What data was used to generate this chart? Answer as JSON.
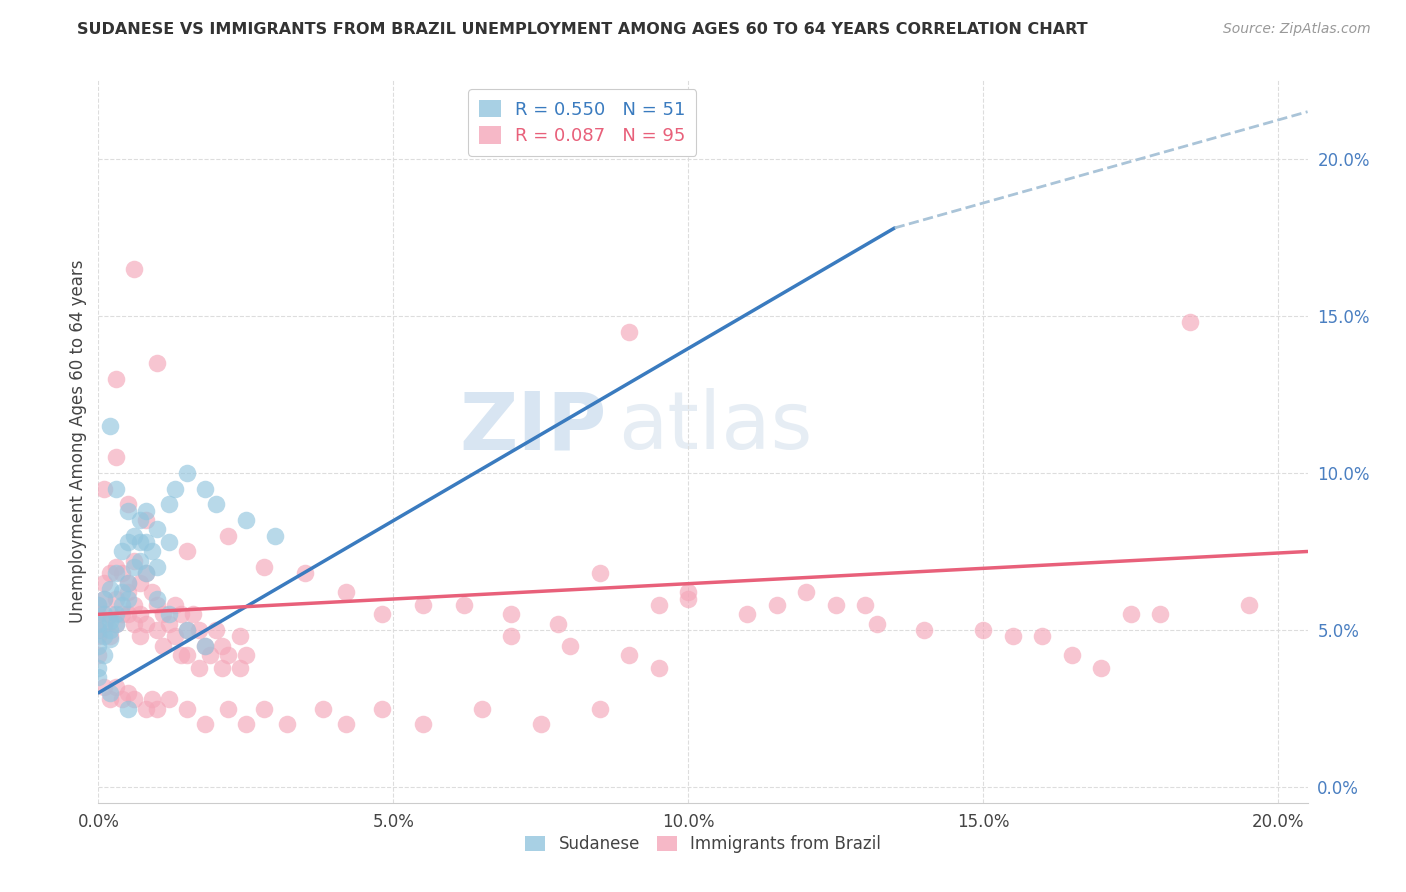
{
  "title": "SUDANESE VS IMMIGRANTS FROM BRAZIL UNEMPLOYMENT AMONG AGES 60 TO 64 YEARS CORRELATION CHART",
  "source": "Source: ZipAtlas.com",
  "ylabel": "Unemployment Among Ages 60 to 64 years",
  "xlim": [
    0.0,
    0.205
  ],
  "ylim": [
    -0.005,
    0.225
  ],
  "xticks": [
    0.0,
    0.05,
    0.1,
    0.15,
    0.2
  ],
  "yticks": [
    0.0,
    0.05,
    0.1,
    0.15,
    0.2
  ],
  "sudanese_color": "#92c5de",
  "brazil_color": "#f4a7b9",
  "sudanese_line_color": "#3a7bbf",
  "brazil_line_color": "#e8607a",
  "dashed_color": "#aac4d8",
  "watermark_color": "#c8dff0",
  "sudanese_line": [
    [
      0.0,
      0.03
    ],
    [
      0.135,
      0.178
    ]
  ],
  "dashed_line": [
    [
      0.135,
      0.178
    ],
    [
      0.205,
      0.215
    ]
  ],
  "brazil_line": [
    [
      0.0,
      0.055
    ],
    [
      0.205,
      0.075
    ]
  ],
  "sudanese_points": [
    [
      0.0,
      0.05
    ],
    [
      0.0,
      0.058
    ],
    [
      0.0,
      0.045
    ],
    [
      0.0,
      0.038
    ],
    [
      0.0,
      0.052
    ],
    [
      0.001,
      0.06
    ],
    [
      0.001,
      0.048
    ],
    [
      0.001,
      0.055
    ],
    [
      0.001,
      0.042
    ],
    [
      0.002,
      0.063
    ],
    [
      0.002,
      0.05
    ],
    [
      0.002,
      0.047
    ],
    [
      0.002,
      0.053
    ],
    [
      0.003,
      0.068
    ],
    [
      0.003,
      0.055
    ],
    [
      0.003,
      0.052
    ],
    [
      0.004,
      0.075
    ],
    [
      0.004,
      0.058
    ],
    [
      0.004,
      0.062
    ],
    [
      0.005,
      0.078
    ],
    [
      0.005,
      0.065
    ],
    [
      0.005,
      0.06
    ],
    [
      0.006,
      0.08
    ],
    [
      0.006,
      0.07
    ],
    [
      0.007,
      0.085
    ],
    [
      0.007,
      0.072
    ],
    [
      0.008,
      0.088
    ],
    [
      0.008,
      0.078
    ],
    [
      0.009,
      0.075
    ],
    [
      0.01,
      0.082
    ],
    [
      0.01,
      0.07
    ],
    [
      0.012,
      0.09
    ],
    [
      0.012,
      0.078
    ],
    [
      0.013,
      0.095
    ],
    [
      0.015,
      0.1
    ],
    [
      0.018,
      0.095
    ],
    [
      0.02,
      0.09
    ],
    [
      0.025,
      0.085
    ],
    [
      0.03,
      0.08
    ],
    [
      0.002,
      0.115
    ],
    [
      0.003,
      0.095
    ],
    [
      0.005,
      0.088
    ],
    [
      0.007,
      0.078
    ],
    [
      0.008,
      0.068
    ],
    [
      0.01,
      0.06
    ],
    [
      0.012,
      0.055
    ],
    [
      0.015,
      0.05
    ],
    [
      0.018,
      0.045
    ],
    [
      0.0,
      0.035
    ],
    [
      0.002,
      0.03
    ],
    [
      0.005,
      0.025
    ]
  ],
  "brazil_points": [
    [
      0.0,
      0.05
    ],
    [
      0.0,
      0.058
    ],
    [
      0.0,
      0.048
    ],
    [
      0.0,
      0.055
    ],
    [
      0.0,
      0.042
    ],
    [
      0.001,
      0.065
    ],
    [
      0.001,
      0.06
    ],
    [
      0.001,
      0.052
    ],
    [
      0.002,
      0.068
    ],
    [
      0.002,
      0.055
    ],
    [
      0.002,
      0.048
    ],
    [
      0.003,
      0.07
    ],
    [
      0.003,
      0.06
    ],
    [
      0.003,
      0.052
    ],
    [
      0.004,
      0.068
    ],
    [
      0.004,
      0.055
    ],
    [
      0.005,
      0.062
    ],
    [
      0.005,
      0.055
    ],
    [
      0.005,
      0.065
    ],
    [
      0.006,
      0.072
    ],
    [
      0.006,
      0.058
    ],
    [
      0.006,
      0.052
    ],
    [
      0.007,
      0.065
    ],
    [
      0.007,
      0.055
    ],
    [
      0.007,
      0.048
    ],
    [
      0.008,
      0.068
    ],
    [
      0.008,
      0.052
    ],
    [
      0.009,
      0.062
    ],
    [
      0.01,
      0.058
    ],
    [
      0.01,
      0.05
    ],
    [
      0.011,
      0.055
    ],
    [
      0.011,
      0.045
    ],
    [
      0.012,
      0.052
    ],
    [
      0.013,
      0.058
    ],
    [
      0.013,
      0.048
    ],
    [
      0.014,
      0.055
    ],
    [
      0.014,
      0.042
    ],
    [
      0.015,
      0.05
    ],
    [
      0.015,
      0.042
    ],
    [
      0.016,
      0.055
    ],
    [
      0.017,
      0.05
    ],
    [
      0.017,
      0.038
    ],
    [
      0.018,
      0.045
    ],
    [
      0.019,
      0.042
    ],
    [
      0.02,
      0.05
    ],
    [
      0.021,
      0.045
    ],
    [
      0.021,
      0.038
    ],
    [
      0.022,
      0.042
    ],
    [
      0.024,
      0.048
    ],
    [
      0.024,
      0.038
    ],
    [
      0.025,
      0.042
    ],
    [
      0.003,
      0.13
    ],
    [
      0.006,
      0.165
    ],
    [
      0.01,
      0.135
    ],
    [
      0.001,
      0.095
    ],
    [
      0.003,
      0.105
    ],
    [
      0.005,
      0.09
    ],
    [
      0.008,
      0.085
    ],
    [
      0.015,
      0.075
    ],
    [
      0.022,
      0.08
    ],
    [
      0.028,
      0.07
    ],
    [
      0.035,
      0.068
    ],
    [
      0.042,
      0.062
    ],
    [
      0.048,
      0.055
    ],
    [
      0.055,
      0.058
    ],
    [
      0.062,
      0.058
    ],
    [
      0.07,
      0.055
    ],
    [
      0.078,
      0.052
    ],
    [
      0.085,
      0.068
    ],
    [
      0.09,
      0.145
    ],
    [
      0.095,
      0.058
    ],
    [
      0.001,
      0.032
    ],
    [
      0.002,
      0.028
    ],
    [
      0.003,
      0.032
    ],
    [
      0.004,
      0.028
    ],
    [
      0.005,
      0.03
    ],
    [
      0.006,
      0.028
    ],
    [
      0.008,
      0.025
    ],
    [
      0.009,
      0.028
    ],
    [
      0.01,
      0.025
    ],
    [
      0.012,
      0.028
    ],
    [
      0.015,
      0.025
    ],
    [
      0.018,
      0.02
    ],
    [
      0.022,
      0.025
    ],
    [
      0.025,
      0.02
    ],
    [
      0.028,
      0.025
    ],
    [
      0.032,
      0.02
    ],
    [
      0.038,
      0.025
    ],
    [
      0.042,
      0.02
    ],
    [
      0.048,
      0.025
    ],
    [
      0.055,
      0.02
    ],
    [
      0.065,
      0.025
    ],
    [
      0.075,
      0.02
    ],
    [
      0.085,
      0.025
    ],
    [
      0.095,
      0.038
    ],
    [
      0.1,
      0.062
    ],
    [
      0.11,
      0.055
    ],
    [
      0.115,
      0.058
    ],
    [
      0.125,
      0.058
    ],
    [
      0.132,
      0.052
    ],
    [
      0.14,
      0.05
    ],
    [
      0.15,
      0.05
    ],
    [
      0.16,
      0.048
    ],
    [
      0.165,
      0.042
    ],
    [
      0.175,
      0.055
    ],
    [
      0.185,
      0.148
    ],
    [
      0.195,
      0.058
    ],
    [
      0.1,
      0.06
    ],
    [
      0.12,
      0.062
    ],
    [
      0.13,
      0.058
    ],
    [
      0.07,
      0.048
    ],
    [
      0.08,
      0.045
    ],
    [
      0.09,
      0.042
    ],
    [
      0.155,
      0.048
    ],
    [
      0.17,
      0.038
    ],
    [
      0.18,
      0.055
    ]
  ]
}
